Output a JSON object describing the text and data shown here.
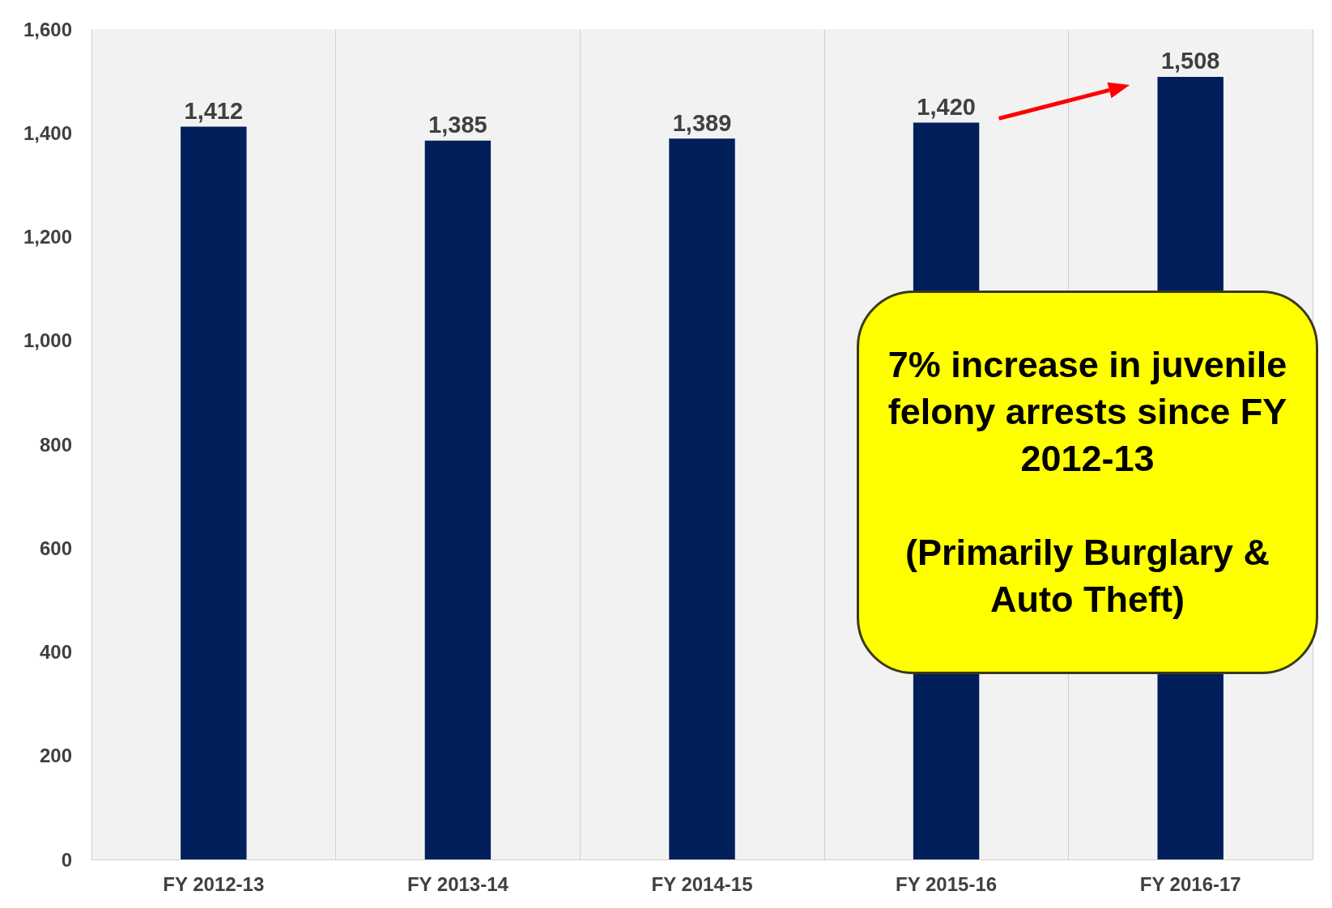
{
  "chart_data": {
    "type": "bar",
    "categories": [
      "FY 2012-13",
      "FY 2013-14",
      "FY 2014-15",
      "FY 2015-16",
      "FY 2016-17"
    ],
    "values": [
      1412,
      1385,
      1389,
      1420,
      1508
    ],
    "value_labels": [
      "1,412",
      "1,385",
      "1,389",
      "1,420",
      "1,508"
    ],
    "color": "#001f5b",
    "ylim": [
      0,
      1600
    ],
    "yticks": [
      0,
      200,
      400,
      600,
      800,
      {
        "value": 1000,
        "label": "1,000"
      },
      {
        "value": 1200,
        "label": "1,200"
      },
      {
        "value": 1400,
        "label": "1,400"
      },
      {
        "value": 1600,
        "label": "1,600"
      }
    ],
    "grid": "x",
    "annotations": [
      "7% increase in juvenile felony arrests since FY 2012-13",
      "(Primarily Burglary & Auto Theft)"
    ]
  }
}
